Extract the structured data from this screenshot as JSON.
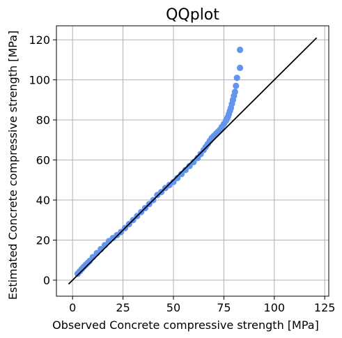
{
  "chart_data": {
    "type": "scatter",
    "title": "QQplot",
    "xlabel": "Observed Concrete compressive strength [MPa]",
    "ylabel": "Estimated Concrete compressive strength [MPa]",
    "xlim": [
      -8,
      127
    ],
    "ylim": [
      -8,
      127
    ],
    "xticks": [
      0,
      25,
      50,
      75,
      100,
      125
    ],
    "yticks": [
      0,
      20,
      40,
      60,
      80,
      100,
      120
    ],
    "grid": true,
    "reference_line": {
      "x": [
        -2,
        121
      ],
      "y": [
        -2,
        121
      ]
    },
    "colors": {
      "points": "#6495ed",
      "line": "#000000",
      "grid": "#b0b0b0"
    },
    "points": {
      "x": [
        2.5,
        3.5,
        4.5,
        5.5,
        6.5,
        7.5,
        8.5,
        10,
        12,
        14,
        16,
        18,
        20,
        22,
        24,
        26,
        28,
        30,
        32,
        34,
        36,
        38,
        40,
        42,
        44,
        46,
        48,
        50,
        52,
        54,
        56,
        58,
        60,
        62,
        63.5,
        65,
        66,
        67,
        68,
        69,
        70,
        71,
        72,
        73,
        74,
        75,
        76,
        76.5,
        77,
        77.5,
        78,
        78.5,
        79,
        79.5,
        80,
        80.5,
        81,
        81.5,
        83
      ],
      "y": [
        3.2,
        4.3,
        5.5,
        6.6,
        7.6,
        8.6,
        9.6,
        11.5,
        13.5,
        15.5,
        17.5,
        19.5,
        21,
        22.5,
        24,
        26,
        28,
        30,
        32,
        34,
        36,
        38,
        40,
        42.5,
        44,
        46,
        47.5,
        49,
        51,
        53,
        55,
        57,
        59,
        61,
        63,
        65,
        66.5,
        68,
        69.5,
        71,
        72,
        73,
        74,
        75,
        76.5,
        78,
        79.5,
        80.5,
        81.5,
        83,
        84.5,
        86,
        88,
        90,
        92,
        94,
        97,
        101,
        106
      ]
    },
    "outlier": {
      "x": 83,
      "y": 115
    }
  }
}
